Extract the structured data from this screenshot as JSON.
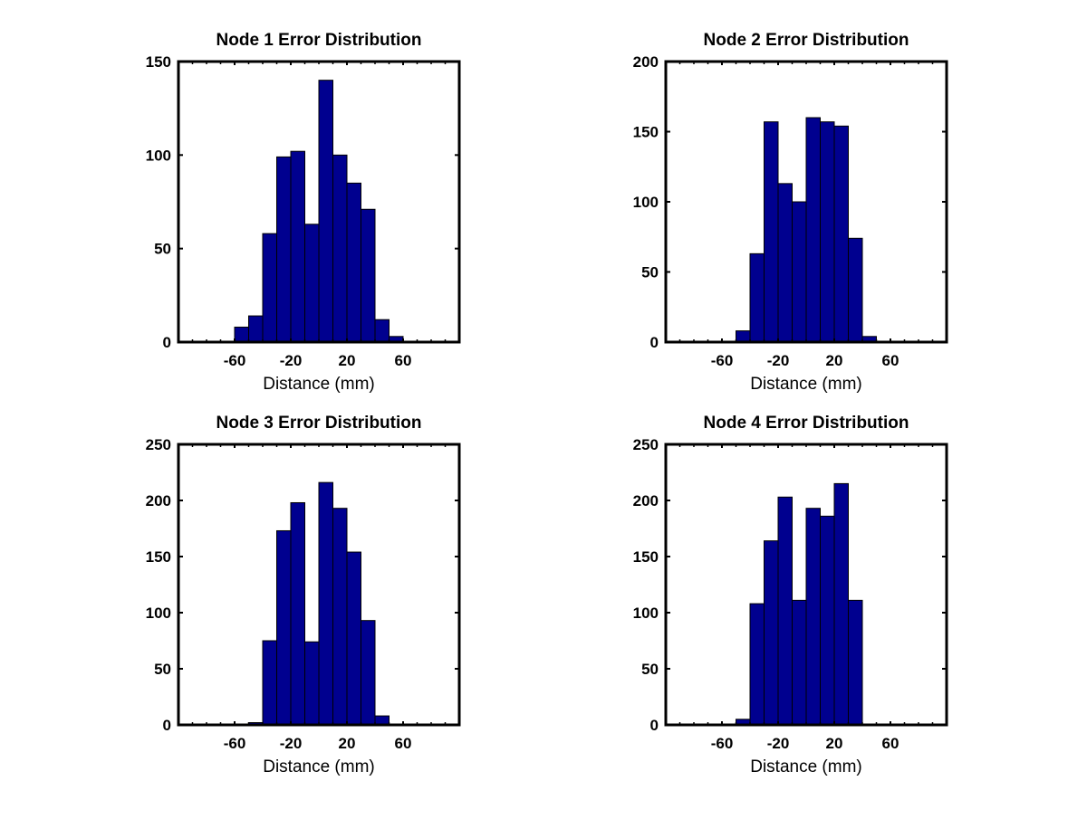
{
  "chart_data": [
    {
      "type": "bar",
      "title": "Node 1 Error Distribution",
      "xlabel": "Distance (mm)",
      "ylabel": "",
      "xlim": [
        -100,
        100
      ],
      "ylim": [
        0,
        150
      ],
      "xticks": [
        -60,
        -20,
        20,
        60
      ],
      "yticks": [
        0,
        50,
        100,
        150
      ],
      "bin_width": 10,
      "bin_centers": [
        -55,
        -45,
        -35,
        -25,
        -15,
        -5,
        5,
        15,
        25,
        35,
        45,
        55
      ],
      "values": [
        8,
        14,
        58,
        99,
        102,
        63,
        140,
        100,
        85,
        71,
        12,
        3
      ],
      "bar_color": "#00008f",
      "grid": false
    },
    {
      "type": "bar",
      "title": "Node 2 Error Distribution",
      "xlabel": "Distance (mm)",
      "ylabel": "",
      "xlim": [
        -100,
        100
      ],
      "ylim": [
        0,
        200
      ],
      "xticks": [
        -60,
        -20,
        20,
        60
      ],
      "yticks": [
        0,
        50,
        100,
        150,
        200
      ],
      "bin_width": 10,
      "bin_centers": [
        -45,
        -35,
        -25,
        -15,
        -5,
        5,
        15,
        25,
        35,
        45
      ],
      "values": [
        8,
        63,
        157,
        113,
        100,
        160,
        157,
        154,
        74,
        4
      ],
      "bar_color": "#00008f",
      "grid": false
    },
    {
      "type": "bar",
      "title": "Node 3 Error Distribution",
      "xlabel": "Distance (mm)",
      "ylabel": "",
      "xlim": [
        -100,
        100
      ],
      "ylim": [
        0,
        250
      ],
      "xticks": [
        -60,
        -20,
        20,
        60
      ],
      "yticks": [
        0,
        50,
        100,
        150,
        200,
        250
      ],
      "bin_width": 10,
      "bin_centers": [
        -45,
        -35,
        -25,
        -15,
        -5,
        5,
        15,
        25,
        35,
        45
      ],
      "values": [
        2,
        75,
        173,
        198,
        74,
        216,
        193,
        154,
        93,
        8
      ],
      "bar_color": "#00008f",
      "grid": false
    },
    {
      "type": "bar",
      "title": "Node 4 Error Distribution",
      "xlabel": "Distance (mm)",
      "ylabel": "",
      "xlim": [
        -100,
        100
      ],
      "ylim": [
        0,
        250
      ],
      "xticks": [
        -60,
        -20,
        20,
        60
      ],
      "yticks": [
        0,
        50,
        100,
        150,
        200,
        250
      ],
      "bin_width": 10,
      "bin_centers": [
        -45,
        -35,
        -25,
        -15,
        -5,
        5,
        15,
        25,
        35
      ],
      "values": [
        5,
        108,
        164,
        203,
        111,
        193,
        186,
        215,
        111
      ],
      "bar_color": "#00008f",
      "grid": false
    }
  ]
}
